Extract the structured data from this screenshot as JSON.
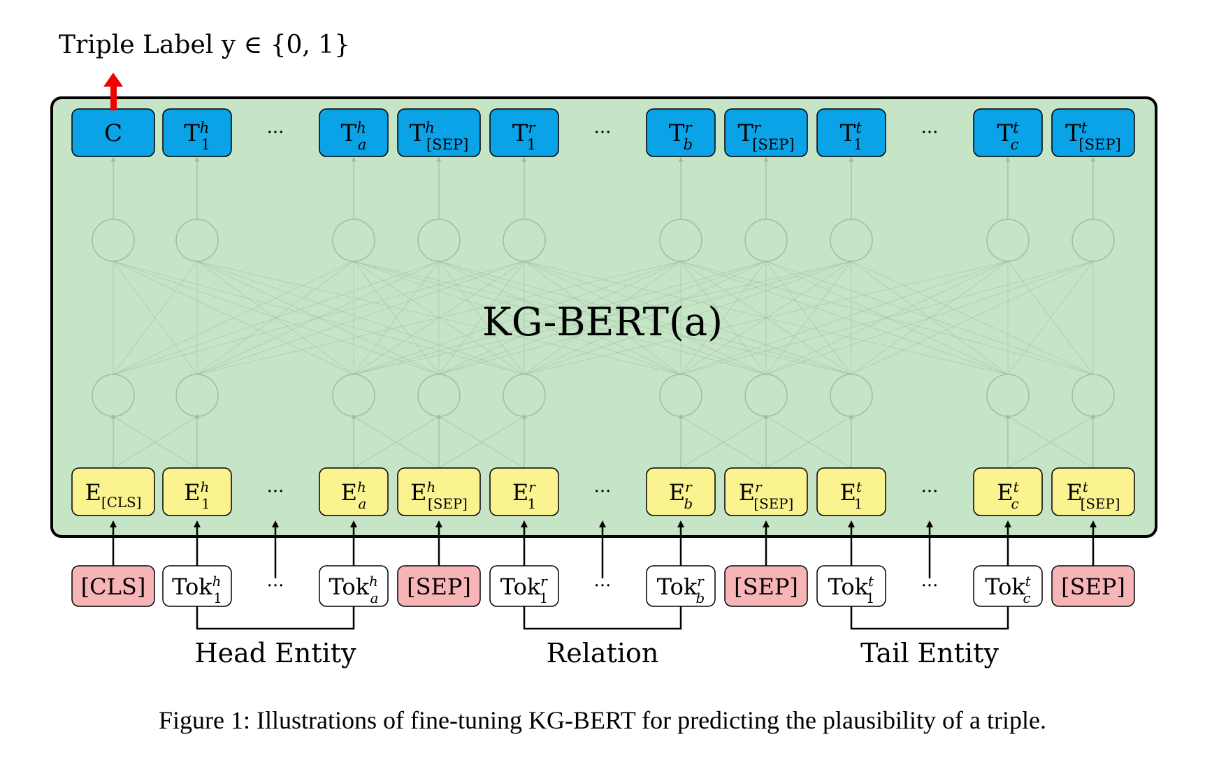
{
  "output_label": "Triple Label y ∈ {0, 1}",
  "model_label": "KG-BERT(a)",
  "caption": "Figure 1: Illustrations of fine-tuning KG-BERT for predicting the plausibility of a triple.",
  "ellipsis": "···",
  "groups": [
    {
      "label": "Head Entity",
      "from": 1,
      "to": 3
    },
    {
      "label": "Relation",
      "from": 5,
      "to": 7
    },
    {
      "label": "Tail Entity",
      "from": 9,
      "to": 11
    }
  ],
  "tokens": [
    {
      "kind": "special",
      "base": "[CLS]",
      "sup": "",
      "sub": ""
    },
    {
      "kind": "token",
      "base": "Tok",
      "sup": "h",
      "sub": "1"
    },
    {
      "kind": "ellipsis"
    },
    {
      "kind": "token",
      "base": "Tok",
      "sup": "h",
      "sub": "a"
    },
    {
      "kind": "special",
      "base": "[SEP]",
      "sup": "",
      "sub": ""
    },
    {
      "kind": "token",
      "base": "Tok",
      "sup": "r",
      "sub": "1"
    },
    {
      "kind": "ellipsis"
    },
    {
      "kind": "token",
      "base": "Tok",
      "sup": "r",
      "sub": "b"
    },
    {
      "kind": "special",
      "base": "[SEP]",
      "sup": "",
      "sub": ""
    },
    {
      "kind": "token",
      "base": "Tok",
      "sup": "t",
      "sub": "1"
    },
    {
      "kind": "ellipsis"
    },
    {
      "kind": "token",
      "base": "Tok",
      "sup": "t",
      "sub": "c"
    },
    {
      "kind": "special",
      "base": "[SEP]",
      "sup": "",
      "sub": ""
    }
  ],
  "embeddings": [
    {
      "kind": "box",
      "base": "E",
      "sup": "",
      "sub": "[CLS]"
    },
    {
      "kind": "box",
      "base": "E",
      "sup": "h",
      "sub": "1"
    },
    {
      "kind": "ellipsis"
    },
    {
      "kind": "box",
      "base": "E",
      "sup": "h",
      "sub": "a"
    },
    {
      "kind": "box",
      "base": "E",
      "sup": "h",
      "sub": "[SEP]"
    },
    {
      "kind": "box",
      "base": "E",
      "sup": "r",
      "sub": "1"
    },
    {
      "kind": "ellipsis"
    },
    {
      "kind": "box",
      "base": "E",
      "sup": "r",
      "sub": "b"
    },
    {
      "kind": "box",
      "base": "E",
      "sup": "r",
      "sub": "[SEP]"
    },
    {
      "kind": "box",
      "base": "E",
      "sup": "t",
      "sub": "1"
    },
    {
      "kind": "ellipsis"
    },
    {
      "kind": "box",
      "base": "E",
      "sup": "t",
      "sub": "c"
    },
    {
      "kind": "box",
      "base": "E",
      "sup": "t",
      "sub": "[SEP]"
    }
  ],
  "outputs": [
    {
      "kind": "box",
      "base": "C",
      "sup": "",
      "sub": ""
    },
    {
      "kind": "box",
      "base": "T",
      "sup": "h",
      "sub": "1"
    },
    {
      "kind": "ellipsis"
    },
    {
      "kind": "box",
      "base": "T",
      "sup": "h",
      "sub": "a"
    },
    {
      "kind": "box",
      "base": "T",
      "sup": "h",
      "sub": "[SEP]"
    },
    {
      "kind": "box",
      "base": "T",
      "sup": "r",
      "sub": "1"
    },
    {
      "kind": "ellipsis"
    },
    {
      "kind": "box",
      "base": "T",
      "sup": "r",
      "sub": "b"
    },
    {
      "kind": "box",
      "base": "T",
      "sup": "r",
      "sub": "[SEP]"
    },
    {
      "kind": "box",
      "base": "T",
      "sup": "t",
      "sub": "1"
    },
    {
      "kind": "ellipsis"
    },
    {
      "kind": "box",
      "base": "T",
      "sup": "t",
      "sub": "c"
    },
    {
      "kind": "box",
      "base": "T",
      "sup": "t",
      "sub": "[SEP]"
    }
  ],
  "colors": {
    "model_fill": "#c6e5c7",
    "output_fill": "#0aa3e8",
    "embedding_fill": "#faf38f",
    "special_fill": "#f8b5b7",
    "token_fill": "#ffffff",
    "arrow_red": "#f20000",
    "faint": "#9dbf9f"
  }
}
